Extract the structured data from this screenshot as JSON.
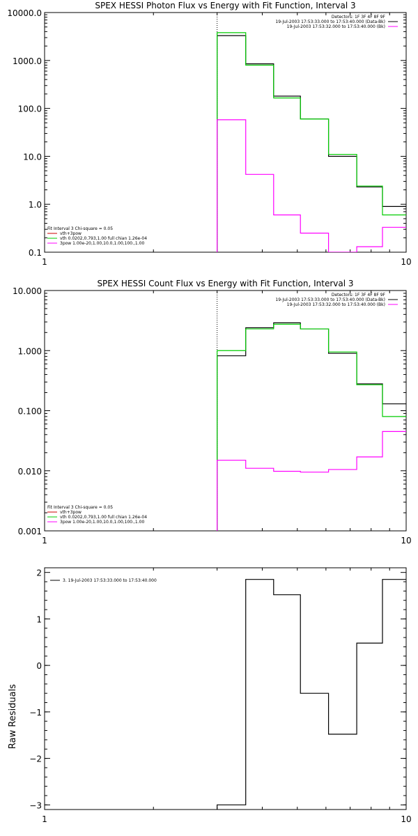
{
  "chart_data": [
    {
      "type": "line",
      "title": "SPEX HESSI Photon Flux vs Energy with Fit Function, Interval 3",
      "xlabel": "",
      "ylabel": "",
      "xscale": "log",
      "yscale": "log",
      "xlim": [
        1,
        10
      ],
      "ylim": [
        0.1,
        10000
      ],
      "xticks": [
        {
          "v": 1,
          "label": "1"
        },
        {
          "v": 10,
          "label": "10"
        }
      ],
      "yticks": [
        {
          "v": 0.1,
          "label": "0.1"
        },
        {
          "v": 1,
          "label": "1.0"
        },
        {
          "v": 10,
          "label": "10.0"
        },
        {
          "v": 100,
          "label": "100.0"
        },
        {
          "v": 1000,
          "label": "1000.0"
        },
        {
          "v": 10000,
          "label": "10000.0"
        }
      ],
      "vline": 3.0,
      "info_lines": [
        "Detectors: 1F 3F 4F 8F 9F",
        "19-Jul-2003 17:53:33.000 to 17:53:40.000 (Data-Bk)",
        "19-Jul-2003 17:53:32.000 to 17:53:40.000 (Bk)"
      ],
      "legend_header": "Fit Interval 3   Chi-square = 0.05",
      "legend": [
        {
          "label": "vth+3pow",
          "color": "#cc0000"
        },
        {
          "label": "vth 0.0202,0.793,1.00  full chian 1.26e-04",
          "color": "#00cc00"
        },
        {
          "label": "3pow 1.00e-20,1.00,10.0,1.00,100.,1.00",
          "color": "#ff00ff"
        }
      ],
      "edges": [
        3.0,
        3.6,
        4.3,
        5.1,
        6.1,
        7.3,
        8.6,
        10.2
      ],
      "series": [
        {
          "color": "#000000",
          "values": [
            3300,
            850,
            180,
            60,
            10,
            2.3,
            0.9
          ]
        },
        {
          "color": "#00cc00",
          "values": [
            3800,
            800,
            165,
            60,
            11,
            2.4,
            0.6
          ]
        },
        {
          "color": "#ff00ff",
          "values": [
            58,
            4.2,
            0.6,
            0.25,
            0.1,
            0.13,
            0.33
          ]
        }
      ]
    },
    {
      "type": "line",
      "title": "SPEX HESSI Count Flux vs Energy with Fit Function, Interval 3",
      "xlabel": "",
      "ylabel": "",
      "xscale": "log",
      "yscale": "log",
      "xlim": [
        1,
        10
      ],
      "ylim": [
        0.001,
        10
      ],
      "xticks": [
        {
          "v": 1,
          "label": "1"
        },
        {
          "v": 10,
          "label": "10"
        }
      ],
      "yticks": [
        {
          "v": 0.001,
          "label": "0.001"
        },
        {
          "v": 0.01,
          "label": "0.010"
        },
        {
          "v": 0.1,
          "label": "0.100"
        },
        {
          "v": 1,
          "label": "1.000"
        },
        {
          "v": 10,
          "label": "10.000"
        }
      ],
      "vline": 3.0,
      "info_lines": [
        "Detectors: 1F 3F 4F 8F 9F",
        "19-Jul-2003 17:53:33.000 to 17:53:40.000 (Data-Bk)",
        "19-Jul-2003 17:53:32.000 to 17:53:40.000 (Bk)"
      ],
      "legend_header": "Fit Interval 3   Chi-square = 0.05",
      "legend": [
        {
          "label": "vth+3pow",
          "color": "#cc0000"
        },
        {
          "label": "vth 0.0202,0.793,1.00  full chian 1.26e-04",
          "color": "#00cc00"
        },
        {
          "label": "3pow 1.00e-20,1.00,10.0,1.00,100.,1.00",
          "color": "#ff00ff"
        }
      ],
      "edges": [
        3.0,
        3.6,
        4.3,
        5.1,
        6.1,
        7.3,
        8.6,
        10.2
      ],
      "series": [
        {
          "color": "#000000",
          "values": [
            0.82,
            2.4,
            2.9,
            2.3,
            0.9,
            0.28,
            0.13
          ]
        },
        {
          "color": "#00cc00",
          "values": [
            1.0,
            2.3,
            2.75,
            2.3,
            0.95,
            0.27,
            0.08
          ]
        },
        {
          "color": "#ff00ff",
          "values": [
            0.015,
            0.011,
            0.0098,
            0.0095,
            0.0105,
            0.017,
            0.045
          ]
        }
      ]
    },
    {
      "type": "line",
      "title": "",
      "xlabel": "",
      "ylabel": "Raw Residuals",
      "xscale": "log",
      "yscale": "linear",
      "xlim": [
        1,
        10
      ],
      "ylim": [
        -3.1,
        2.1
      ],
      "xticks": [
        {
          "v": 1,
          "label": "1"
        },
        {
          "v": 10,
          "label": "10"
        }
      ],
      "yticks": [
        {
          "v": -3,
          "label": "−3"
        },
        {
          "v": -2,
          "label": "−2"
        },
        {
          "v": -1,
          "label": "−1"
        },
        {
          "v": 0,
          "label": "0"
        },
        {
          "v": 1,
          "label": "1"
        },
        {
          "v": 2,
          "label": "2"
        }
      ],
      "legend": [
        {
          "label": "3. 19-Jul-2003 17:53:33.000 to 17:53:40.000",
          "color": "#000000"
        }
      ],
      "edges": [
        3.0,
        3.6,
        4.3,
        5.1,
        6.1,
        7.3,
        8.6,
        10.2
      ],
      "series": [
        {
          "color": "#000000",
          "values": [
            -3.0,
            1.85,
            1.52,
            -0.6,
            -1.48,
            0.48,
            1.85
          ]
        }
      ]
    }
  ]
}
